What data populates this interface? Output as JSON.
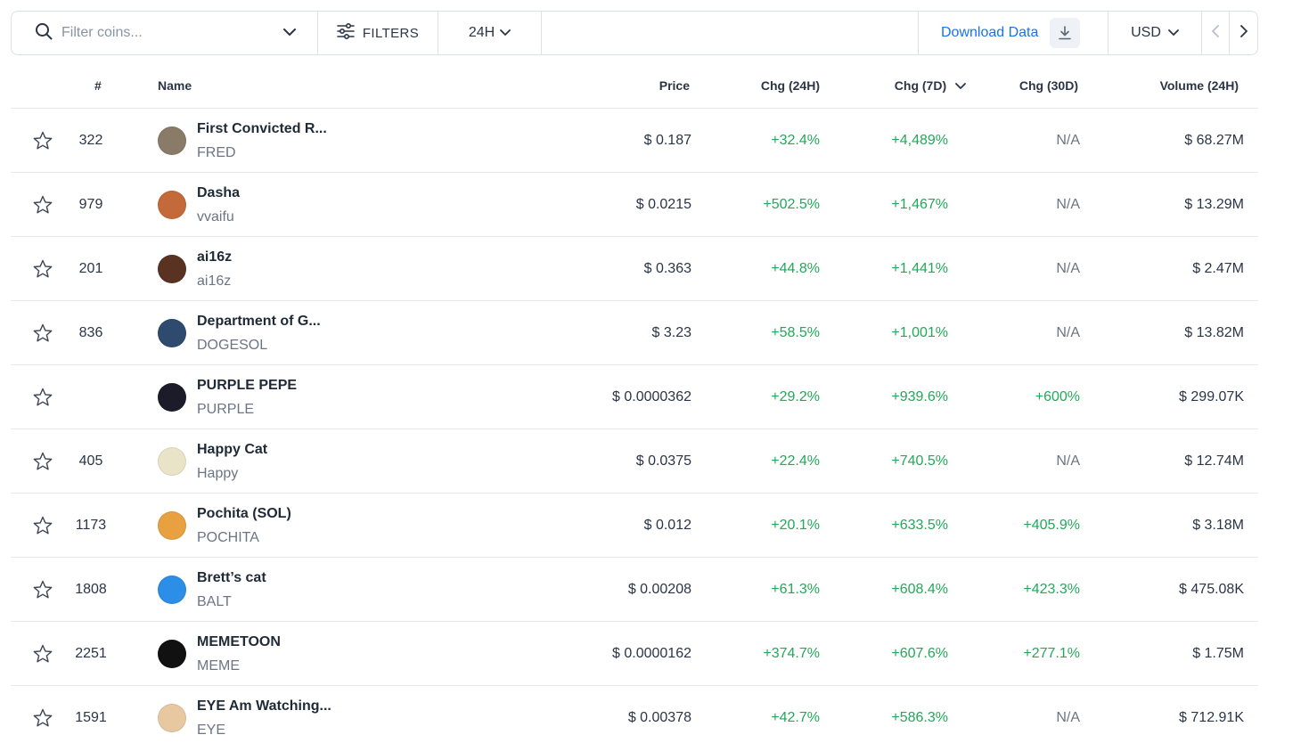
{
  "toolbar": {
    "search_placeholder": "Filter coins...",
    "filters_label": "FILTERS",
    "period_label": "24H",
    "download_label": "Download Data",
    "currency_label": "USD"
  },
  "table": {
    "headers": {
      "rank": "#",
      "name": "Name",
      "price": "Price",
      "chg24": "Chg (24H)",
      "chg7": "Chg (7D)",
      "chg30": "Chg (30D)",
      "volume": "Volume (24H)"
    },
    "rows": [
      {
        "rank": "322",
        "name": "First Convicted R...",
        "symbol": "FRED",
        "price": "$ 0.187",
        "chg24": "+32.4%",
        "chg7": "+4,489%",
        "chg30": "N/A",
        "volume": "$ 68.27M",
        "avatar_color": "#8a7a68"
      },
      {
        "rank": "979",
        "name": "Dasha",
        "symbol": "vvaifu",
        "price": "$ 0.0215",
        "chg24": "+502.5%",
        "chg7": "+1,467%",
        "chg30": "N/A",
        "volume": "$ 13.29M",
        "avatar_color": "#c46a3a"
      },
      {
        "rank": "201",
        "name": "ai16z",
        "symbol": "ai16z",
        "price": "$ 0.363",
        "chg24": "+44.8%",
        "chg7": "+1,441%",
        "chg30": "N/A",
        "volume": "$ 2.47M",
        "avatar_color": "#5a3222"
      },
      {
        "rank": "836",
        "name": "Department of G...",
        "symbol": "DOGESOL",
        "price": "$ 3.23",
        "chg24": "+58.5%",
        "chg7": "+1,001%",
        "chg30": "N/A",
        "volume": "$ 13.82M",
        "avatar_color": "#2e4a6e"
      },
      {
        "rank": "",
        "name": "PURPLE PEPE",
        "symbol": "PURPLE",
        "price": "$ 0.0000362",
        "chg24": "+29.2%",
        "chg7": "+939.6%",
        "chg30": "+600%",
        "volume": "$ 299.07K",
        "avatar_color": "#1b1b2a"
      },
      {
        "rank": "405",
        "name": "Happy Cat",
        "symbol": "Happy",
        "price": "$ 0.0375",
        "chg24": "+22.4%",
        "chg7": "+740.5%",
        "chg30": "N/A",
        "volume": "$ 12.74M",
        "avatar_color": "#e9e4c8"
      },
      {
        "rank": "1173",
        "name": "Pochita (SOL)",
        "symbol": "POCHITA",
        "price": "$ 0.012",
        "chg24": "+20.1%",
        "chg7": "+633.5%",
        "chg30": "+405.9%",
        "volume": "$ 3.18M",
        "avatar_color": "#e8a040"
      },
      {
        "rank": "1808",
        "name": "Brett’s cat",
        "symbol": "BALT",
        "price": "$ 0.00208",
        "chg24": "+61.3%",
        "chg7": "+608.4%",
        "chg30": "+423.3%",
        "volume": "$ 475.08K",
        "avatar_color": "#2d8ee8"
      },
      {
        "rank": "2251",
        "name": "MEMETOON",
        "symbol": "MEME",
        "price": "$ 0.0000162",
        "chg24": "+374.7%",
        "chg7": "+607.6%",
        "chg30": "+277.1%",
        "volume": "$ 1.75M",
        "avatar_color": "#111111"
      },
      {
        "rank": "1591",
        "name": "EYE Am Watching...",
        "symbol": "EYE",
        "price": "$ 0.00378",
        "chg24": "+42.7%",
        "chg7": "+586.3%",
        "chg30": "N/A",
        "volume": "$ 712.91K",
        "avatar_color": "#e8c8a0"
      }
    ]
  },
  "colors": {
    "positive": "#23a85a",
    "accent": "#1a73e8",
    "muted": "#6b7584"
  },
  "icons": {
    "search": "search-icon",
    "filters": "sliders-icon",
    "chevron": "chevron-down-icon",
    "download": "download-icon",
    "prev": "chevron-left-icon",
    "next": "chevron-right-icon",
    "star": "star-outline-icon"
  }
}
